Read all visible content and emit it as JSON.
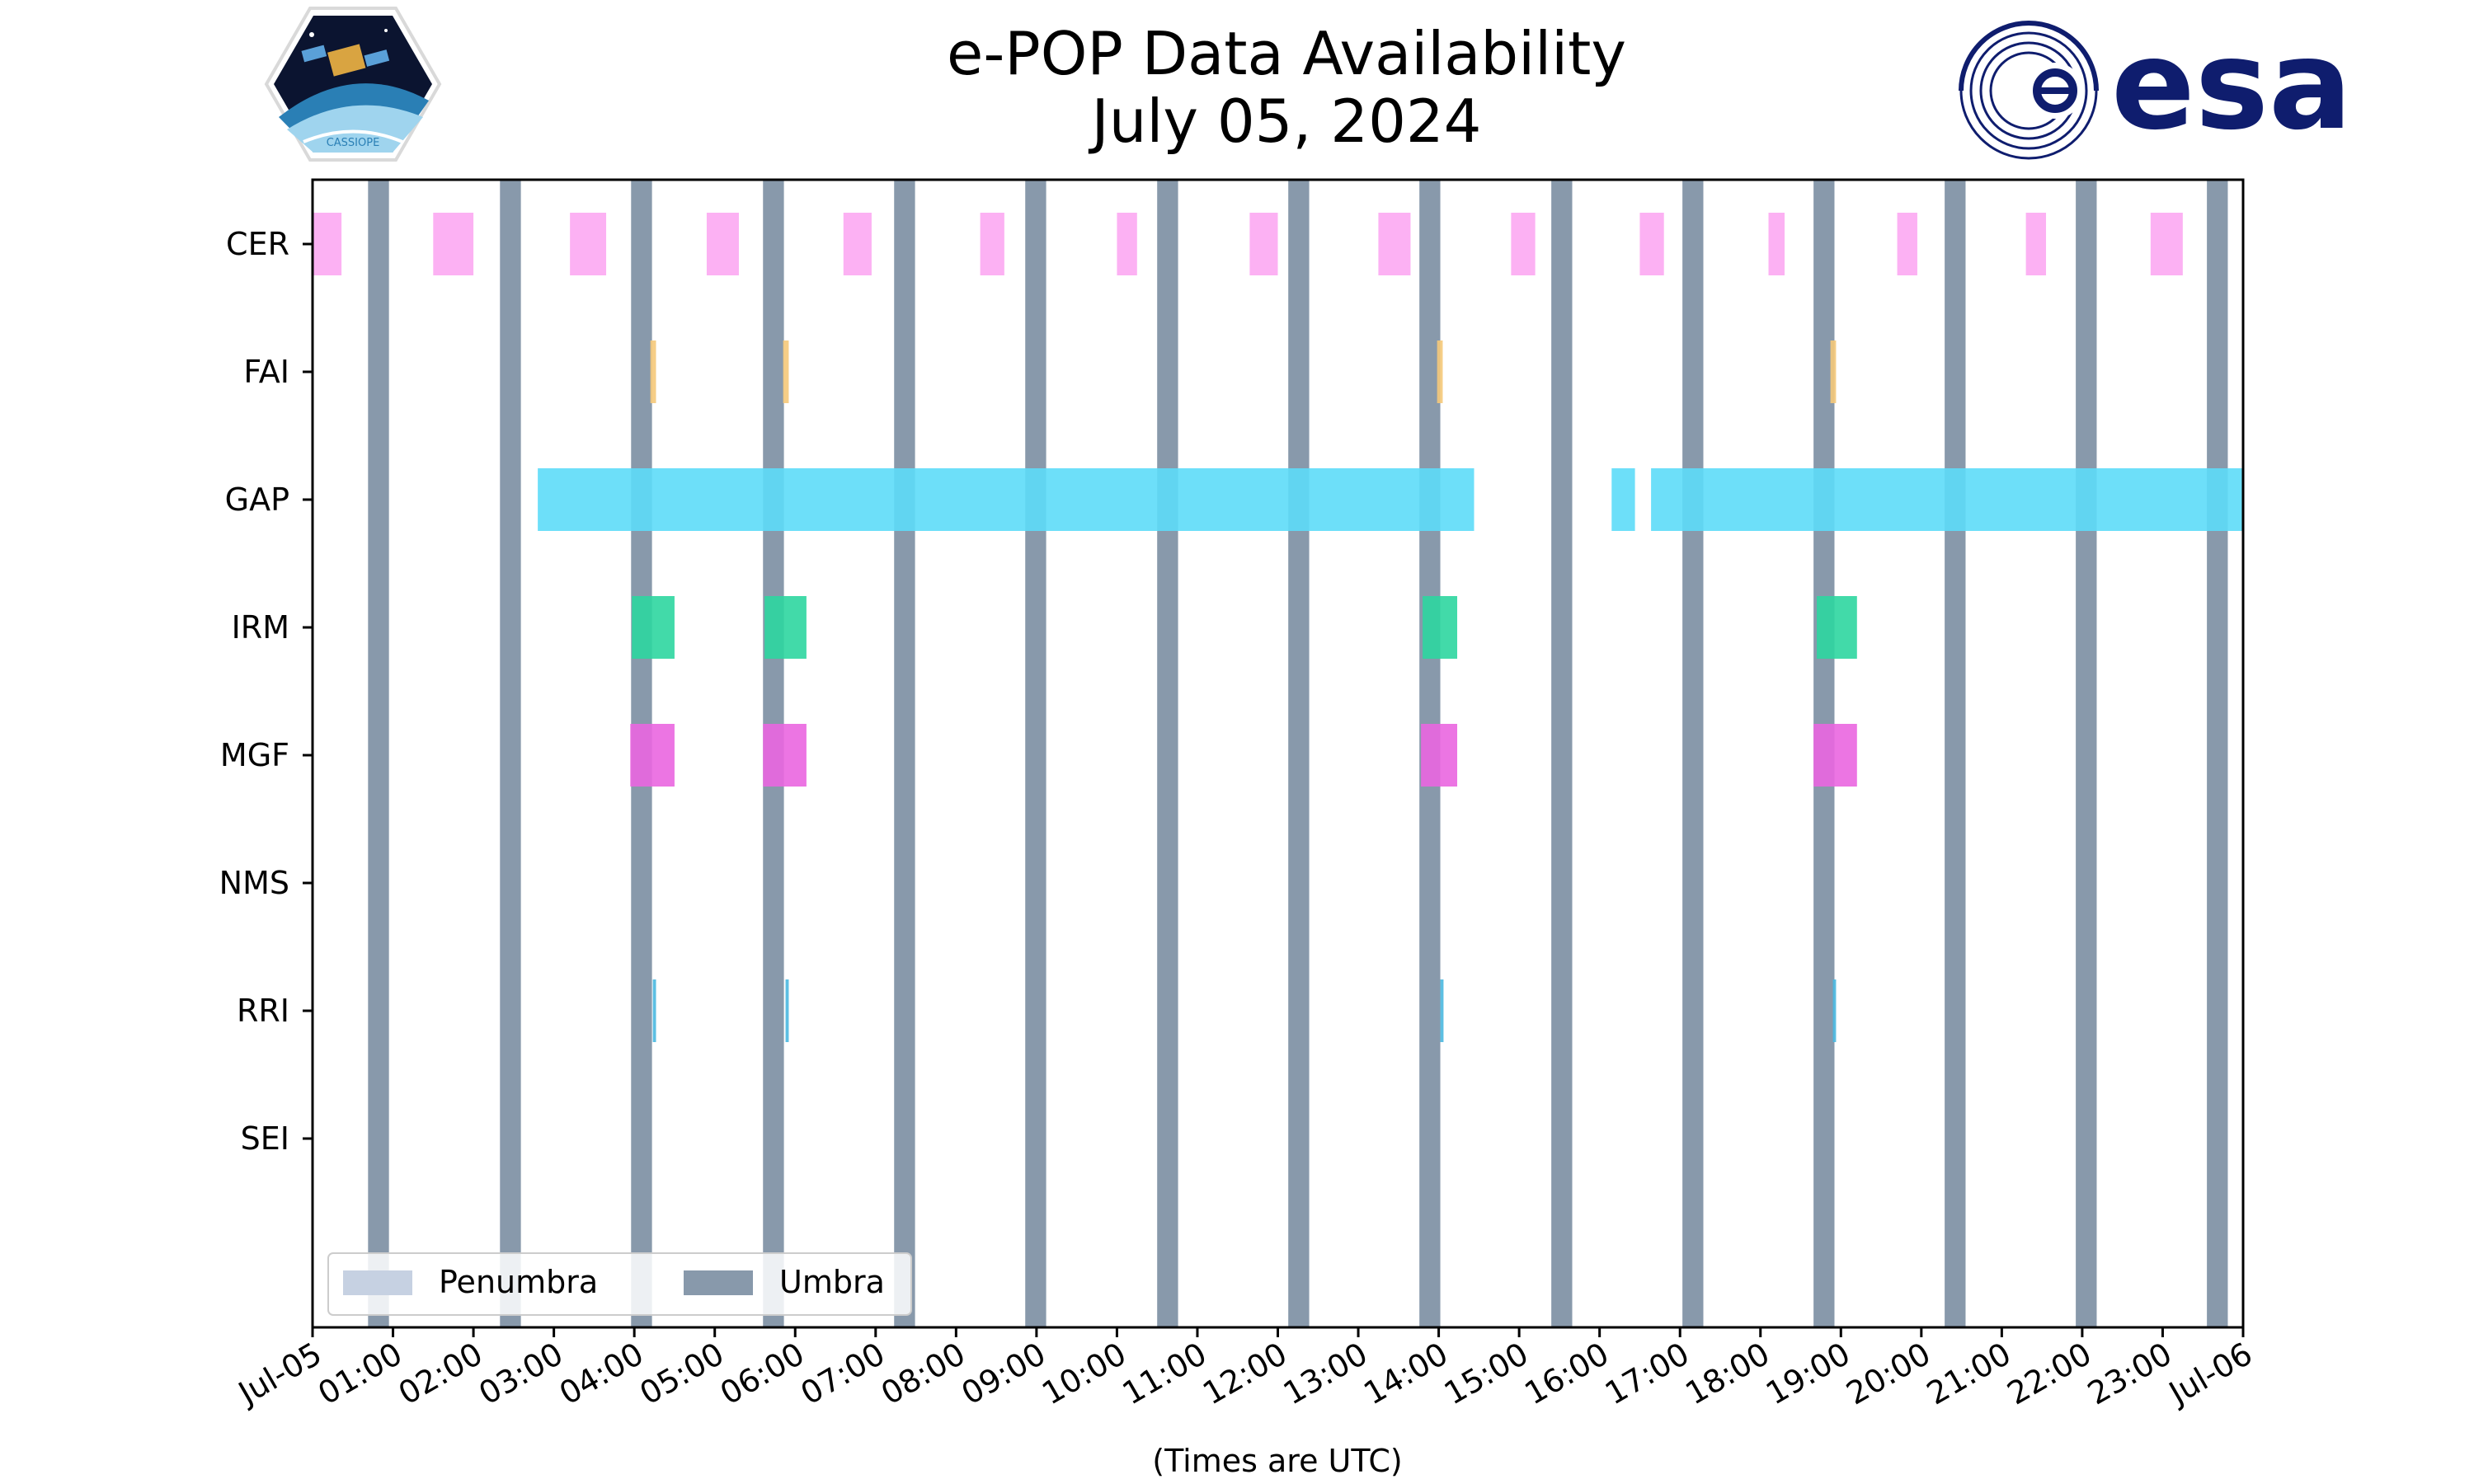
{
  "chart_data": {
    "type": "timeline",
    "title_line1": "e-POP Data Availability",
    "title_line2": "July 05, 2024",
    "xlabel": "(Times are UTC)",
    "x_range_hours": [
      0,
      24
    ],
    "x_tick_labels": [
      "Jul-05",
      "01:00",
      "02:00",
      "03:00",
      "04:00",
      "05:00",
      "06:00",
      "07:00",
      "08:00",
      "09:00",
      "10:00",
      "11:00",
      "12:00",
      "13:00",
      "14:00",
      "15:00",
      "16:00",
      "17:00",
      "18:00",
      "19:00",
      "20:00",
      "21:00",
      "22:00",
      "23:00",
      "Jul-06"
    ],
    "categories": [
      "CER",
      "FAI",
      "GAP",
      "IRM",
      "MGF",
      "NMS",
      "RRI",
      "SEI"
    ],
    "umbra_intervals": [
      [
        0.69,
        0.95
      ],
      [
        2.33,
        2.59
      ],
      [
        3.96,
        4.22
      ],
      [
        5.6,
        5.86
      ],
      [
        7.23,
        7.49
      ],
      [
        8.86,
        9.12
      ],
      [
        10.5,
        10.76
      ],
      [
        12.13,
        12.39
      ],
      [
        13.76,
        14.02
      ],
      [
        15.4,
        15.66
      ],
      [
        17.03,
        17.29
      ],
      [
        18.66,
        18.92
      ],
      [
        20.29,
        20.55
      ],
      [
        21.92,
        22.18
      ],
      [
        23.55,
        23.81
      ]
    ],
    "series": [
      {
        "name": "CER",
        "color": "#fca8f2",
        "intervals": [
          [
            0,
            0.36
          ],
          [
            1.5,
            2.0
          ],
          [
            3.2,
            3.65
          ],
          [
            4.9,
            5.3
          ],
          [
            6.6,
            6.95
          ],
          [
            8.3,
            8.6
          ],
          [
            10.0,
            10.25
          ],
          [
            11.65,
            12.0
          ],
          [
            13.25,
            13.65
          ],
          [
            14.9,
            15.2
          ],
          [
            16.5,
            16.8
          ],
          [
            18.1,
            18.3
          ],
          [
            19.7,
            19.95
          ],
          [
            21.3,
            21.55
          ],
          [
            22.85,
            23.25
          ]
        ]
      },
      {
        "name": "FAI",
        "color": "#f5c97a",
        "intervals": [
          [
            4.2,
            4.27
          ],
          [
            5.85,
            5.92
          ],
          [
            13.98,
            14.05
          ],
          [
            18.87,
            18.94
          ]
        ]
      },
      {
        "name": "GAP",
        "color": "#5ddcf8",
        "intervals": [
          [
            2.8,
            14.44
          ],
          [
            16.15,
            16.44
          ],
          [
            16.64,
            24.0
          ]
        ]
      },
      {
        "name": "IRM",
        "color": "#2ed6a0",
        "intervals": [
          [
            3.97,
            4.5
          ],
          [
            5.62,
            6.14
          ],
          [
            13.8,
            14.23
          ],
          [
            18.7,
            19.2
          ]
        ]
      },
      {
        "name": "MGF",
        "color": "#ea66e0",
        "intervals": [
          [
            3.95,
            4.5
          ],
          [
            5.6,
            6.14
          ],
          [
            13.78,
            14.23
          ],
          [
            18.66,
            19.2
          ]
        ]
      },
      {
        "name": "NMS",
        "color": "#000000",
        "intervals": []
      },
      {
        "name": "RRI",
        "color": "#4ab8e0",
        "intervals": [
          [
            4.23,
            4.27
          ],
          [
            5.88,
            5.92
          ],
          [
            14.02,
            14.06
          ],
          [
            18.9,
            18.94
          ]
        ]
      },
      {
        "name": "SEI",
        "color": "#000000",
        "intervals": []
      }
    ],
    "legend": {
      "location": "lower-left",
      "entries": [
        {
          "label": "Penumbra",
          "color": "#c6d1e2"
        },
        {
          "label": "Umbra",
          "color": "#8899ab"
        }
      ]
    },
    "grid": false
  },
  "logos": {
    "cassiope_text": "CASSIOPE",
    "esa_text": "esa",
    "brand_color": "#0f1d6e"
  }
}
